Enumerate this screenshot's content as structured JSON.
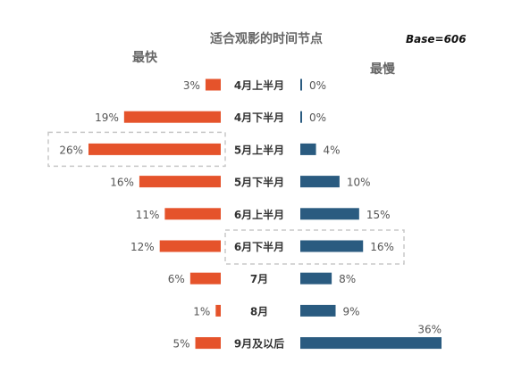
{
  "chart_data": {
    "type": "bar",
    "title": "适合观影的时间节点",
    "base_label": "Base=606",
    "categories": [
      "4月上半月",
      "4月下半月",
      "5月上半月",
      "5月下半月",
      "6月上半月",
      "6月下半月",
      "7月",
      "8月",
      "9月及以后"
    ],
    "series": [
      {
        "name": "最快",
        "values": [
          3,
          19,
          26,
          16,
          11,
          12,
          6,
          1,
          5
        ],
        "labels": [
          "3%",
          "19%",
          "26%",
          "16%",
          "11%",
          "12%",
          "6%",
          "1%",
          "5%"
        ],
        "color": "#E5532B",
        "highlight": "5月上半月"
      },
      {
        "name": "最慢",
        "values": [
          0,
          0,
          4,
          10,
          15,
          16,
          8,
          9,
          36
        ],
        "labels": [
          "0%",
          "0%",
          "4%",
          "10%",
          "15%",
          "16%",
          "8%",
          "9%",
          "36%"
        ],
        "color": "#2A5B80",
        "highlight": "6月下半月"
      }
    ],
    "unit": "%",
    "orientation": "horizontal",
    "highlight_style": "dashed box"
  }
}
